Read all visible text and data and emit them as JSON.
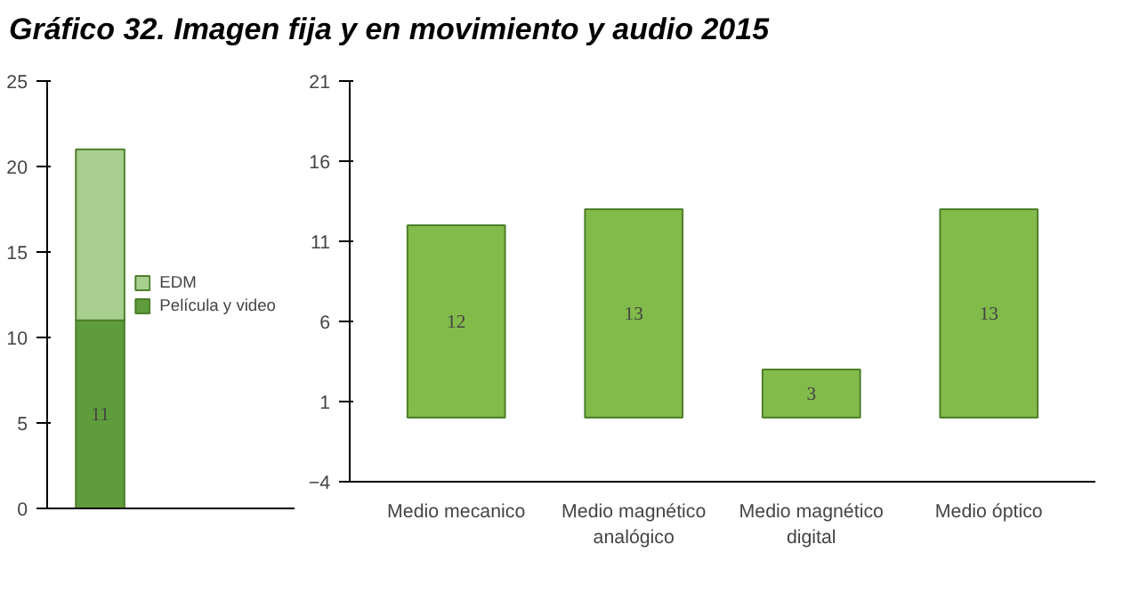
{
  "chart_data": [
    {
      "type": "bar",
      "title": "Gráfico 32.  Imagen fija y en movimiento y audio 2015",
      "categories": [
        null
      ],
      "stacked": true,
      "legend": "right",
      "series": [
        {
          "name": "Película y video",
          "color": "#5e9c3c",
          "values": [
            11
          ],
          "value_labels": [
            "11"
          ]
        },
        {
          "name": "EDM",
          "color": "#a9cf90",
          "values": [
            10
          ]
        }
      ],
      "ylim": [
        0,
        25
      ],
      "yticks": [
        0,
        5,
        10,
        15,
        20,
        25
      ]
    },
    {
      "type": "bar",
      "categories": [
        "Medio mecanico",
        "Medio magnético analógico",
        "Medio magnético digital",
        "Medio óptico"
      ],
      "values": [
        12,
        13,
        3,
        13
      ],
      "color": "#82bb4a",
      "data_labels": true,
      "ylim": [
        -4,
        21
      ],
      "yticks": [
        -4,
        1,
        6,
        11,
        16,
        21
      ]
    }
  ]
}
